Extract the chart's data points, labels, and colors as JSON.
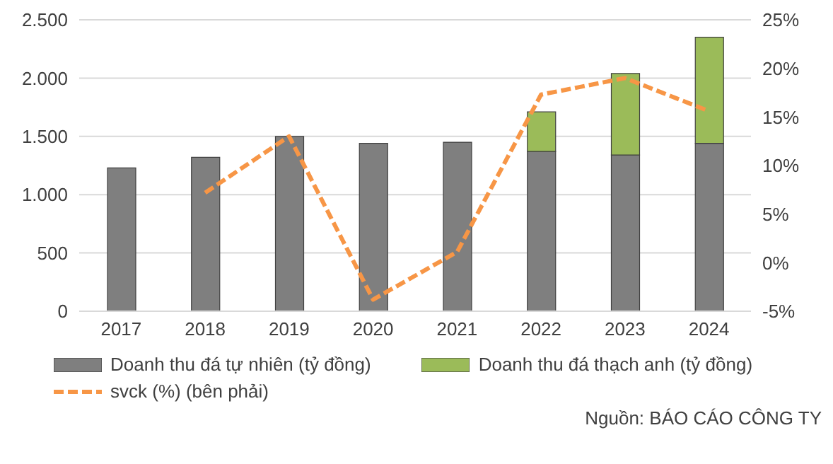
{
  "chart_data": {
    "type": "bar",
    "stacked": true,
    "categories": [
      "2017",
      "2018",
      "2019",
      "2020",
      "2021",
      "2022",
      "2023",
      "2024"
    ],
    "series": [
      {
        "name": "Doanh thu đá tự nhiên (tỷ đồng)",
        "color": "#7f7f7f",
        "values": [
          1230,
          1320,
          1500,
          1440,
          1450,
          1370,
          1340,
          1440
        ]
      },
      {
        "name": "Doanh thu đá thạch anh (tỷ đồng)",
        "color": "#9bbb59",
        "values": [
          null,
          null,
          null,
          null,
          null,
          340,
          700,
          910
        ]
      },
      {
        "name": "svck (%) (bên phải)",
        "type": "line",
        "axis": "y2",
        "color": "#f79646",
        "line_style": "dashed",
        "marker": "none",
        "values": [
          null,
          7.2,
          13.0,
          -3.8,
          1.1,
          17.3,
          19.0,
          15.6
        ]
      }
    ],
    "ylim": [
      0,
      2500
    ],
    "yticks": [
      {
        "value": 0,
        "label": "0"
      },
      {
        "value": 500,
        "label": "500"
      },
      {
        "value": 1000,
        "label": "1.000"
      },
      {
        "value": 1500,
        "label": "1.500"
      },
      {
        "value": 2000,
        "label": "2.000"
      },
      {
        "value": 2500,
        "label": "2.500"
      }
    ],
    "y2lim": [
      -5,
      25
    ],
    "y2ticks": [
      {
        "value": -5,
        "label": "-5%"
      },
      {
        "value": 0,
        "label": "0%"
      },
      {
        "value": 5,
        "label": "5%"
      },
      {
        "value": 10,
        "label": "10%"
      },
      {
        "value": 15,
        "label": "15%"
      },
      {
        "value": 20,
        "label": "20%"
      },
      {
        "value": 25,
        "label": "25%"
      }
    ],
    "grid": "y",
    "legend": "bottom",
    "annotations": [
      "Nguồn: BÁO CÁO CÔNG TY"
    ]
  }
}
